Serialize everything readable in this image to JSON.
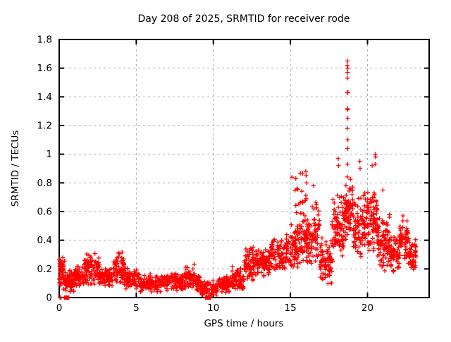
{
  "chart_data": {
    "type": "scatter",
    "title": "Day 208 of 2025, SRMTID for receiver rode",
    "xlabel": "GPS time / hours",
    "ylabel": "SRMTID / TECUs",
    "xlim": [
      0,
      24
    ],
    "ylim": [
      0,
      1.8
    ],
    "xticks": [
      0,
      5,
      10,
      15,
      20
    ],
    "xtick_labels": [
      "0",
      "5",
      "10",
      "15",
      "20"
    ],
    "yticks": [
      0,
      0.2,
      0.4,
      0.6,
      0.8,
      1.0,
      1.2,
      1.4,
      1.6,
      1.8
    ],
    "ytick_labels": [
      "0",
      "0.2",
      "0.4",
      "0.6",
      "0.8",
      "1",
      "1.2",
      "1.4",
      "1.6",
      "1.8"
    ],
    "grid": true,
    "legend": "none",
    "marker": "plus",
    "marker_color": "#ff0000",
    "grid_color": "#aaaaaa",
    "border_color": "#000000",
    "cluster_fields": "[t_start_hours, t_end_hours, n_points, y_center_TECUs, y_spread_TECUs, y_min_TECUs, y_max_TECUs]",
    "point_clusters": [
      [
        0.0,
        0.35,
        45,
        0.17,
        0.07,
        0.04,
        0.36
      ],
      [
        0.35,
        1.0,
        70,
        0.12,
        0.05,
        0.04,
        0.26
      ],
      [
        1.0,
        1.6,
        55,
        0.15,
        0.04,
        0.07,
        0.24
      ],
      [
        1.6,
        2.6,
        90,
        0.19,
        0.06,
        0.08,
        0.34
      ],
      [
        2.6,
        3.5,
        75,
        0.14,
        0.04,
        0.07,
        0.26
      ],
      [
        3.5,
        4.3,
        70,
        0.19,
        0.07,
        0.08,
        0.37
      ],
      [
        4.3,
        5.2,
        70,
        0.13,
        0.04,
        0.06,
        0.28
      ],
      [
        5.2,
        7.0,
        130,
        0.1,
        0.035,
        0.04,
        0.2
      ],
      [
        7.0,
        8.2,
        90,
        0.11,
        0.035,
        0.05,
        0.22
      ],
      [
        8.2,
        8.8,
        50,
        0.15,
        0.05,
        0.06,
        0.28
      ],
      [
        8.8,
        9.2,
        35,
        0.1,
        0.035,
        0.04,
        0.18
      ],
      [
        9.2,
        10.3,
        80,
        0.06,
        0.03,
        0.01,
        0.13
      ],
      [
        10.3,
        11.2,
        70,
        0.09,
        0.035,
        0.03,
        0.17
      ],
      [
        11.2,
        12.0,
        70,
        0.13,
        0.045,
        0.06,
        0.25
      ],
      [
        12.0,
        12.6,
        60,
        0.24,
        0.07,
        0.12,
        0.42
      ],
      [
        12.6,
        13.6,
        85,
        0.24,
        0.05,
        0.13,
        0.36
      ],
      [
        13.6,
        14.6,
        85,
        0.3,
        0.07,
        0.17,
        0.5
      ],
      [
        14.6,
        15.6,
        90,
        0.35,
        0.09,
        0.2,
        0.62
      ],
      [
        15.3,
        16.1,
        30,
        0.6,
        0.15,
        0.35,
        0.88
      ],
      [
        15.6,
        16.4,
        70,
        0.38,
        0.09,
        0.22,
        0.65
      ],
      [
        16.4,
        16.9,
        45,
        0.45,
        0.12,
        0.25,
        0.8
      ],
      [
        16.9,
        17.7,
        80,
        0.25,
        0.09,
        0.08,
        0.5
      ],
      [
        17.7,
        18.45,
        85,
        0.5,
        0.14,
        0.25,
        0.95
      ],
      [
        18.45,
        19.05,
        80,
        0.62,
        0.12,
        0.35,
        0.9
      ],
      [
        19.05,
        19.85,
        85,
        0.5,
        0.12,
        0.25,
        0.92
      ],
      [
        19.85,
        20.65,
        90,
        0.55,
        0.12,
        0.3,
        0.97
      ],
      [
        20.65,
        21.45,
        85,
        0.38,
        0.11,
        0.15,
        0.75
      ],
      [
        21.45,
        22.05,
        60,
        0.3,
        0.07,
        0.15,
        0.5
      ],
      [
        22.05,
        22.65,
        60,
        0.4,
        0.07,
        0.24,
        0.6
      ],
      [
        22.65,
        23.15,
        50,
        0.3,
        0.07,
        0.15,
        0.46
      ]
    ],
    "outlier_points": [
      [
        15.1,
        0.84
      ],
      [
        15.35,
        0.83
      ],
      [
        16.0,
        0.88
      ],
      [
        16.02,
        0.85
      ],
      [
        16.05,
        0.8
      ],
      [
        16.5,
        0.78
      ],
      [
        18.1,
        0.97
      ],
      [
        18.12,
        0.92
      ],
      [
        18.7,
        1.65
      ],
      [
        18.68,
        1.62
      ],
      [
        18.72,
        1.6
      ],
      [
        18.71,
        1.57
      ],
      [
        18.7,
        1.53
      ],
      [
        18.69,
        1.43
      ],
      [
        18.73,
        1.43
      ],
      [
        18.7,
        1.32
      ],
      [
        18.71,
        1.31
      ],
      [
        18.72,
        1.25
      ],
      [
        18.69,
        1.18
      ],
      [
        18.72,
        1.1
      ],
      [
        18.7,
        1.04
      ],
      [
        18.71,
        0.93
      ],
      [
        19.5,
        0.95
      ],
      [
        19.52,
        0.9
      ],
      [
        20.3,
        0.92
      ],
      [
        20.5,
        1.0
      ],
      [
        20.52,
        0.98
      ],
      [
        20.5,
        0.93
      ],
      [
        21.0,
        0.75
      ],
      [
        22.3,
        0.57
      ]
    ],
    "zero_plus_points": [
      [
        0.05,
        0
      ],
      [
        0.12,
        0
      ]
    ],
    "zero_square_points": [
      [
        0.45,
        0
      ],
      [
        0.52,
        0
      ],
      [
        9.6,
        0
      ],
      [
        9.72,
        0
      ]
    ]
  }
}
